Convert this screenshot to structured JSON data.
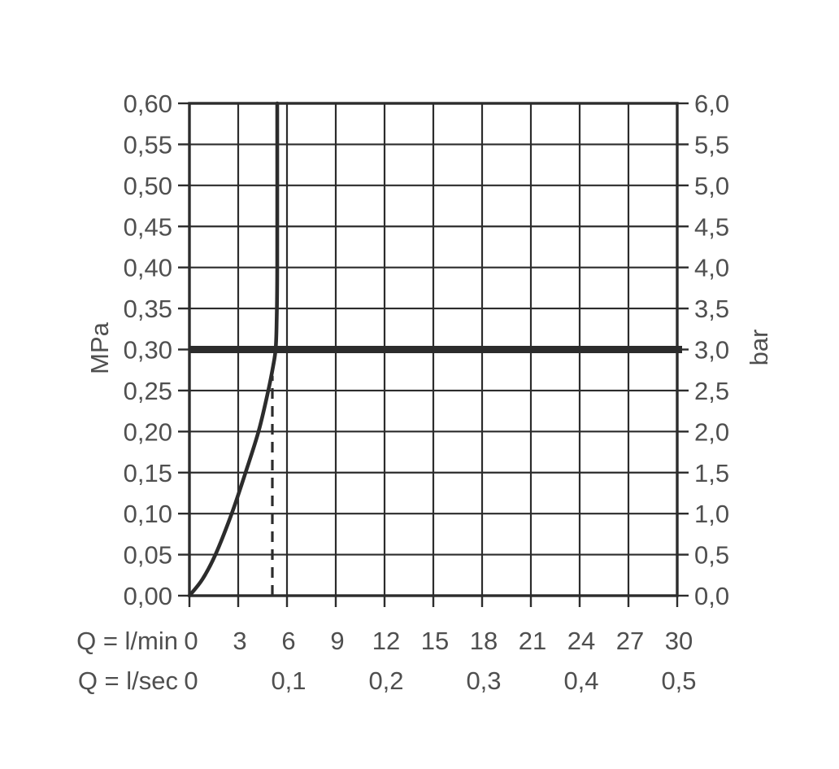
{
  "chart_data": {
    "type": "line",
    "title": "",
    "x_axis": {
      "primary_label": "Q = l/min",
      "primary_ticks": [
        "0",
        "3",
        "6",
        "9",
        "12",
        "15",
        "18",
        "21",
        "24",
        "27",
        "30"
      ],
      "primary_values": [
        0,
        3,
        6,
        9,
        12,
        15,
        18,
        21,
        24,
        27,
        30
      ],
      "secondary_label": "Q = l/sec",
      "secondary_ticks": [
        {
          "label": "0",
          "q_lmin": 0
        },
        {
          "label": "0,1",
          "q_lmin": 6
        },
        {
          "label": "0,2",
          "q_lmin": 12
        },
        {
          "label": "0,3",
          "q_lmin": 18
        },
        {
          "label": "0,4",
          "q_lmin": 24
        },
        {
          "label": "0,5",
          "q_lmin": 30
        }
      ],
      "xlim": [
        0,
        30
      ]
    },
    "y_axis_left": {
      "unit": "MPa",
      "tick_labels": [
        "0,60",
        "0,55",
        "0,50",
        "0,45",
        "0,40",
        "0,35",
        "0,30",
        "0,25",
        "0,20",
        "0,15",
        "0,10",
        "0,05",
        "0,00"
      ],
      "min": 0,
      "max": 0.6,
      "step": 0.05
    },
    "y_axis_right": {
      "unit": "bar",
      "tick_labels": [
        "6,0",
        "5,5",
        "5,0",
        "4,5",
        "4,0",
        "3,5",
        "3,0",
        "2,5",
        "2,0",
        "1,5",
        "1,0",
        "0,5",
        "0,0"
      ],
      "min": 0,
      "max": 6,
      "step": 0.5
    },
    "grid": {
      "show": true,
      "x_step_lmin": 3,
      "y_step_mpa": 0.05
    },
    "reference_line": {
      "type": "horizontal-bold",
      "mpa": 0.3,
      "bar": 3.0
    },
    "dashed_line": {
      "type": "vertical-dashed",
      "q_lmin": 5.1,
      "from_mpa": 0.0,
      "to_mpa": 0.268
    },
    "series": [
      {
        "name": "pressure-flow-curve",
        "points_q_mpa": [
          [
            0,
            0
          ],
          [
            0.8,
            0.02
          ],
          [
            1.6,
            0.05
          ],
          [
            2.6,
            0.1
          ],
          [
            3.45,
            0.15
          ],
          [
            4.25,
            0.2
          ],
          [
            4.85,
            0.25
          ],
          [
            5.15,
            0.28
          ],
          [
            5.3,
            0.3
          ],
          [
            5.36,
            0.33
          ],
          [
            5.4,
            0.4
          ],
          [
            5.4,
            0.6
          ]
        ]
      }
    ]
  },
  "colors": {
    "background": "#ffffff",
    "line": "#2c2c2c",
    "text": "#4f4f4f"
  }
}
